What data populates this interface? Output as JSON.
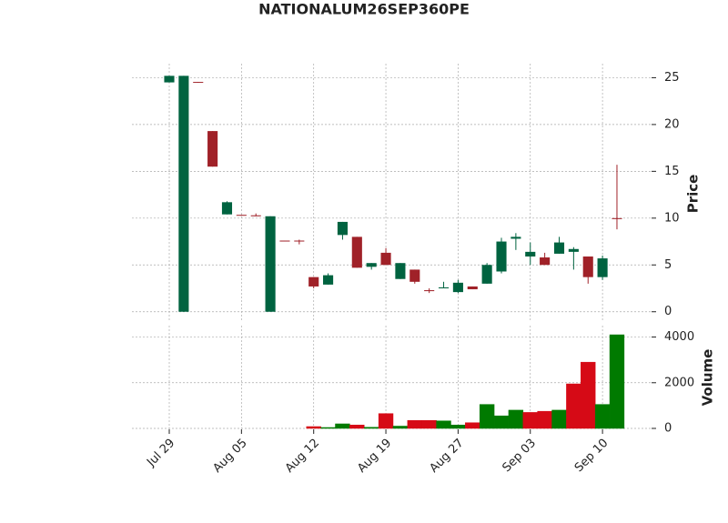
{
  "chart_data": {
    "type": "candlestick",
    "title": "NATIONALUM26SEP360PE",
    "categories": [
      "Jul 29",
      null,
      null,
      null,
      null,
      "Aug 05",
      null,
      null,
      null,
      null,
      "Aug 12",
      null,
      null,
      null,
      null,
      "Aug 19",
      null,
      null,
      null,
      null,
      "Aug 27",
      null,
      null,
      null,
      null,
      "Sep 03",
      null,
      null,
      null,
      null,
      "Sep 10",
      null
    ],
    "open": [
      24.5,
      0,
      24.55,
      19.3,
      10.4,
      10.35,
      10.3,
      0,
      7.6,
      7.6,
      3.7,
      2.9,
      8.2,
      8.0,
      4.8,
      6.3,
      3.5,
      4.5,
      2.3,
      2.5,
      2.1,
      2.7,
      3.0,
      4.3,
      7.8,
      5.9,
      5.8,
      6.2,
      6.4,
      5.9,
      3.7,
      10.0
    ],
    "high": [
      25.2,
      25.2,
      24.55,
      19.3,
      11.8,
      10.35,
      10.5,
      10.2,
      7.6,
      7.7,
      3.7,
      4.1,
      9.6,
      8.0,
      5.2,
      6.8,
      5.2,
      4.5,
      2.5,
      3.2,
      3.4,
      2.7,
      5.2,
      7.9,
      8.4,
      7.4,
      6.3,
      8.0,
      6.9,
      5.9,
      6.0,
      15.7
    ],
    "low": [
      24.5,
      0,
      24.5,
      15.5,
      10.4,
      10.3,
      10.2,
      0,
      7.55,
      7.2,
      2.5,
      2.9,
      7.7,
      4.7,
      4.5,
      5.0,
      3.5,
      3.0,
      2.0,
      2.5,
      2.0,
      2.4,
      3.0,
      4.1,
      6.6,
      5.0,
      5.0,
      6.2,
      4.5,
      3.0,
      3.4,
      8.8
    ],
    "close": [
      25.2,
      25.2,
      24.5,
      15.5,
      11.7,
      10.3,
      10.2,
      10.2,
      7.55,
      7.55,
      2.7,
      3.9,
      9.6,
      4.7,
      5.2,
      5.0,
      5.2,
      3.2,
      2.2,
      2.6,
      3.1,
      2.4,
      5.0,
      7.5,
      8.0,
      6.4,
      5.0,
      7.4,
      6.7,
      3.7,
      5.7,
      9.9
    ],
    "volume": [
      0,
      0,
      0,
      0,
      0,
      0,
      0,
      0,
      0,
      0,
      80,
      40,
      200,
      150,
      50,
      650,
      100,
      350,
      350,
      330,
      150,
      250,
      1050,
      550,
      800,
      700,
      750,
      800,
      1950,
      2900,
      1050,
      4100
    ],
    "up_color": "#006340",
    "down_color": "#a02128",
    "volume_up_color": "#007a00",
    "volume_down_color": "#d60a16",
    "ylabel": "Price",
    "ylim": [
      -0.9,
      26.5
    ],
    "yticks": [
      0,
      5,
      10,
      15,
      20,
      25
    ],
    "y2label": "Volume",
    "y2lim": [
      0,
      4500
    ],
    "y2ticks": [
      0,
      2000,
      4000
    ],
    "grid": true
  }
}
